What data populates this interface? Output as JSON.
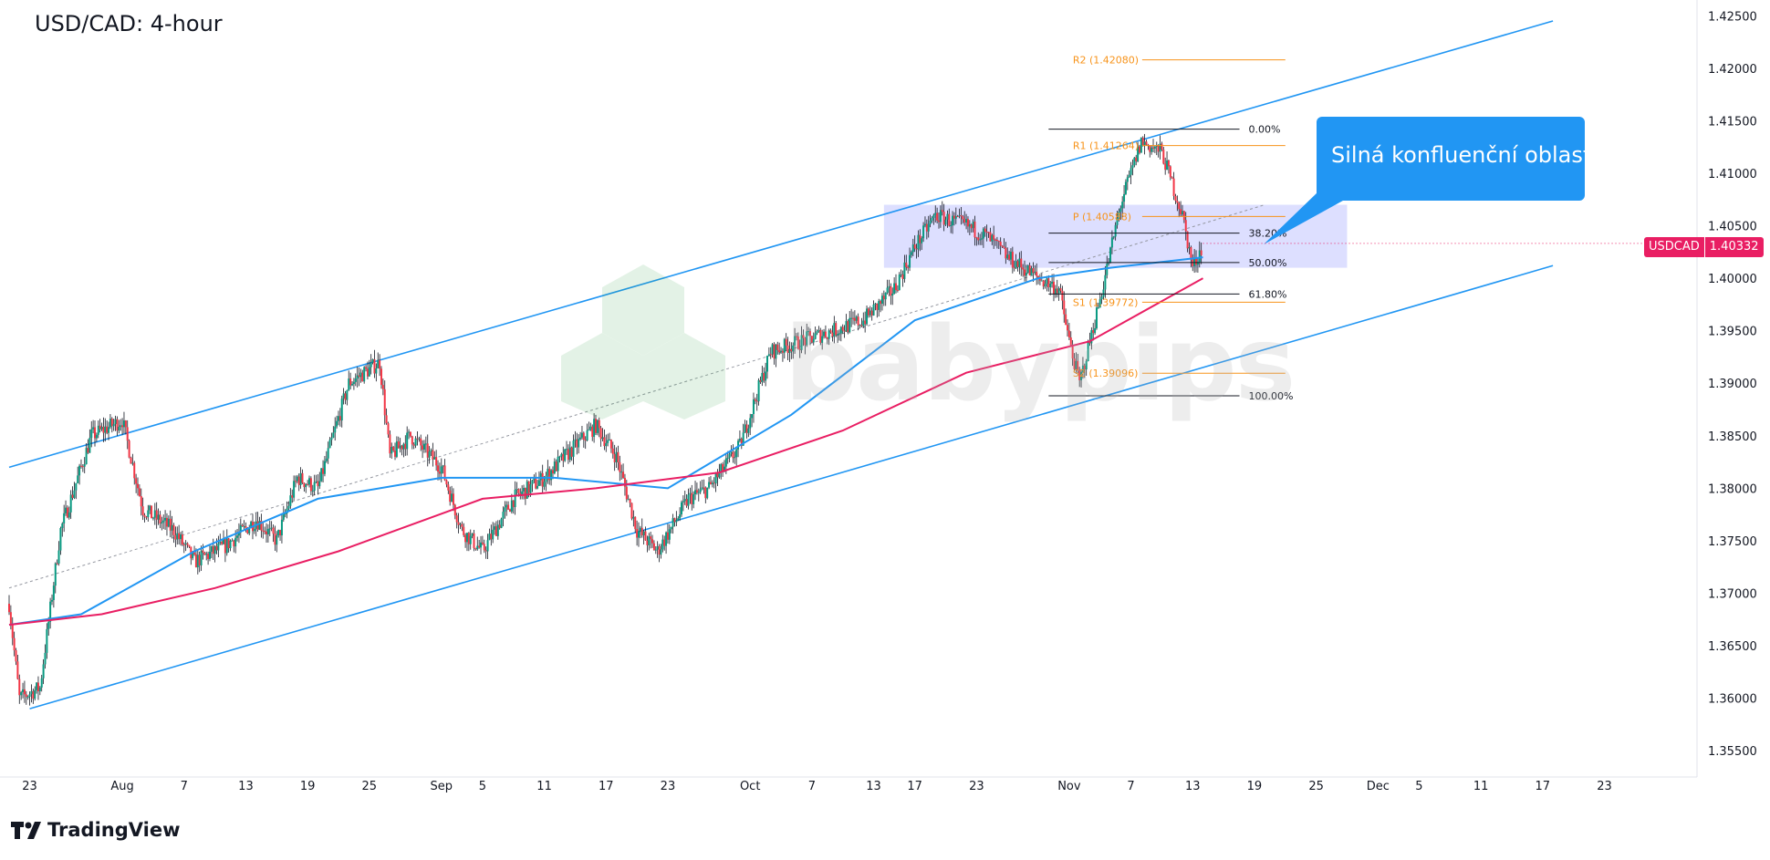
{
  "header": {
    "title": "USD/CAD: 4-hour"
  },
  "brand": {
    "name": "TradingView"
  },
  "watermark": {
    "text": "babypips"
  },
  "callout": {
    "text": "Silná konfluenční oblast"
  },
  "symbol_badge": {
    "symbol": "USDCAD",
    "price": "1.40332",
    "color": "#e91e63"
  },
  "colors": {
    "candle_up": "#089981",
    "candle_down": "#f23645",
    "channel": "#2196f3",
    "sma100": "#2196f3",
    "sma200": "#e91e63",
    "zone": "#d1d4ff",
    "pivot": "#f7931a"
  },
  "chart_data": {
    "type": "candlestick",
    "x_axis": {
      "ticks": [
        {
          "label": "23",
          "date": "2024-07-23"
        },
        {
          "label": "Aug",
          "date": "2024-08-01"
        },
        {
          "label": "7",
          "date": "2024-08-07"
        },
        {
          "label": "13",
          "date": "2024-08-13"
        },
        {
          "label": "19",
          "date": "2024-08-19"
        },
        {
          "label": "25",
          "date": "2024-08-25"
        },
        {
          "label": "Sep",
          "date": "2024-09-01"
        },
        {
          "label": "5",
          "date": "2024-09-05"
        },
        {
          "label": "11",
          "date": "2024-09-11"
        },
        {
          "label": "17",
          "date": "2024-09-17"
        },
        {
          "label": "23",
          "date": "2024-09-23"
        },
        {
          "label": "Oct",
          "date": "2024-10-01"
        },
        {
          "label": "7",
          "date": "2024-10-07"
        },
        {
          "label": "13",
          "date": "2024-10-13"
        },
        {
          "label": "17",
          "date": "2024-10-17"
        },
        {
          "label": "23",
          "date": "2024-10-23"
        },
        {
          "label": "Nov",
          "date": "2024-11-01"
        },
        {
          "label": "7",
          "date": "2024-11-07"
        },
        {
          "label": "13",
          "date": "2024-11-13"
        },
        {
          "label": "19",
          "date": "2024-11-19"
        },
        {
          "label": "25",
          "date": "2024-11-25"
        },
        {
          "label": "Dec",
          "date": "2024-12-01"
        },
        {
          "label": "5",
          "date": "2024-12-05"
        },
        {
          "label": "11",
          "date": "2024-12-11"
        },
        {
          "label": "17",
          "date": "2024-12-17"
        },
        {
          "label": "23",
          "date": "2024-12-23"
        }
      ],
      "range": [
        "2024-07-21",
        "2025-01-01"
      ]
    },
    "y_axis": {
      "ticks": [
        "1.35500",
        "1.36000",
        "1.36500",
        "1.37000",
        "1.37500",
        "1.38000",
        "1.38500",
        "1.39000",
        "1.39500",
        "1.40000",
        "1.40500",
        "1.41000",
        "1.41500",
        "1.42000",
        "1.42500"
      ],
      "range": [
        1.3525,
        1.4265
      ]
    },
    "price_path": [
      {
        "date": "2024-07-21",
        "price": 1.369
      },
      {
        "date": "2024-07-22",
        "price": 1.36
      },
      {
        "date": "2024-07-24",
        "price": 1.361
      },
      {
        "date": "2024-07-26",
        "price": 1.376
      },
      {
        "date": "2024-07-29",
        "price": 1.385
      },
      {
        "date": "2024-08-01",
        "price": 1.3865
      },
      {
        "date": "2024-08-03",
        "price": 1.378
      },
      {
        "date": "2024-08-06",
        "price": 1.376
      },
      {
        "date": "2024-08-08",
        "price": 1.373
      },
      {
        "date": "2024-08-11",
        "price": 1.3745
      },
      {
        "date": "2024-08-14",
        "price": 1.377
      },
      {
        "date": "2024-08-16",
        "price": 1.375
      },
      {
        "date": "2024-08-18",
        "price": 1.381
      },
      {
        "date": "2024-08-20",
        "price": 1.38
      },
      {
        "date": "2024-08-23",
        "price": 1.39
      },
      {
        "date": "2024-08-26",
        "price": 1.392
      },
      {
        "date": "2024-08-27",
        "price": 1.383
      },
      {
        "date": "2024-08-29",
        "price": 1.385
      },
      {
        "date": "2024-09-01",
        "price": 1.382
      },
      {
        "date": "2024-09-03",
        "price": 1.376
      },
      {
        "date": "2024-09-05",
        "price": 1.374
      },
      {
        "date": "2024-09-08",
        "price": 1.379
      },
      {
        "date": "2024-09-11",
        "price": 1.381
      },
      {
        "date": "2024-09-13",
        "price": 1.383
      },
      {
        "date": "2024-09-16",
        "price": 1.386
      },
      {
        "date": "2024-09-18",
        "price": 1.383
      },
      {
        "date": "2024-09-20",
        "price": 1.376
      },
      {
        "date": "2024-09-22",
        "price": 1.374
      },
      {
        "date": "2024-09-25",
        "price": 1.379
      },
      {
        "date": "2024-09-27",
        "price": 1.38
      },
      {
        "date": "2024-09-30",
        "price": 1.384
      },
      {
        "date": "2024-10-03",
        "price": 1.393
      },
      {
        "date": "2024-10-06",
        "price": 1.394
      },
      {
        "date": "2024-10-09",
        "price": 1.395
      },
      {
        "date": "2024-10-12",
        "price": 1.396
      },
      {
        "date": "2024-10-15",
        "price": 1.399
      },
      {
        "date": "2024-10-17",
        "price": 1.403
      },
      {
        "date": "2024-10-19",
        "price": 1.406
      },
      {
        "date": "2024-10-22",
        "price": 1.405
      },
      {
        "date": "2024-10-24",
        "price": 1.404
      },
      {
        "date": "2024-10-26",
        "price": 1.402
      },
      {
        "date": "2024-10-29",
        "price": 1.4
      },
      {
        "date": "2024-10-31",
        "price": 1.399
      },
      {
        "date": "2024-11-01",
        "price": 1.394
      },
      {
        "date": "2024-11-02",
        "price": 1.39
      },
      {
        "date": "2024-11-04",
        "price": 1.398
      },
      {
        "date": "2024-11-06",
        "price": 1.407
      },
      {
        "date": "2024-11-08",
        "price": 1.413
      },
      {
        "date": "2024-11-10",
        "price": 1.412
      },
      {
        "date": "2024-11-12",
        "price": 1.406
      },
      {
        "date": "2024-11-13",
        "price": 1.401
      },
      {
        "date": "2024-11-14",
        "price": 1.4033
      }
    ],
    "series": [
      {
        "name": "",
        "kind": "sma100",
        "points": [
          [
            "2024-07-21",
            1.367
          ],
          [
            "2024-07-28",
            1.368
          ],
          [
            "2024-08-08",
            1.374
          ],
          [
            "2024-08-20",
            1.379
          ],
          [
            "2024-09-01",
            1.381
          ],
          [
            "2024-09-12",
            1.381
          ],
          [
            "2024-09-23",
            1.38
          ],
          [
            "2024-10-05",
            1.387
          ],
          [
            "2024-10-17",
            1.396
          ],
          [
            "2024-10-29",
            1.4
          ],
          [
            "2024-11-05",
            1.401
          ],
          [
            "2024-11-14",
            1.402
          ]
        ]
      },
      {
        "name": "",
        "kind": "sma200",
        "points": [
          [
            "2024-07-21",
            1.367
          ],
          [
            "2024-07-30",
            1.368
          ],
          [
            "2024-08-10",
            1.3705
          ],
          [
            "2024-08-22",
            1.374
          ],
          [
            "2024-09-05",
            1.379
          ],
          [
            "2024-09-16",
            1.38
          ],
          [
            "2024-09-28",
            1.3815
          ],
          [
            "2024-10-10",
            1.3855
          ],
          [
            "2024-10-22",
            1.391
          ],
          [
            "2024-11-03",
            1.394
          ],
          [
            "2024-11-14",
            1.4
          ]
        ]
      }
    ],
    "channel": {
      "upper": [
        [
          "2024-07-21",
          1.382
        ],
        [
          "2024-12-18",
          1.4245
        ]
      ],
      "lower": [
        [
          "2024-07-23",
          1.359
        ],
        [
          "2024-12-18",
          1.4012
        ]
      ]
    },
    "zone": {
      "from": "2024-10-14",
      "to": "2024-11-28",
      "top": 1.407,
      "bottom": 1.401
    },
    "fib_levels": [
      {
        "label": "0.00%",
        "price": 1.4142
      },
      {
        "label": "38.20%",
        "price": 1.4043
      },
      {
        "label": "50.00%",
        "price": 1.4015
      },
      {
        "label": "61.80%",
        "price": 1.3985
      },
      {
        "label": "100.00%",
        "price": 1.3888
      }
    ],
    "pivots": [
      {
        "label": "R2 (1.42080)",
        "price": 1.4208
      },
      {
        "label": "R1 (1.41264)",
        "price": 1.41264
      },
      {
        "label": "P (1.40588)",
        "price": 1.40588
      },
      {
        "label": "S1 (1.39772)",
        "price": 1.39772
      },
      {
        "label": "S2 (1.39096)",
        "price": 1.39096
      }
    ]
  }
}
